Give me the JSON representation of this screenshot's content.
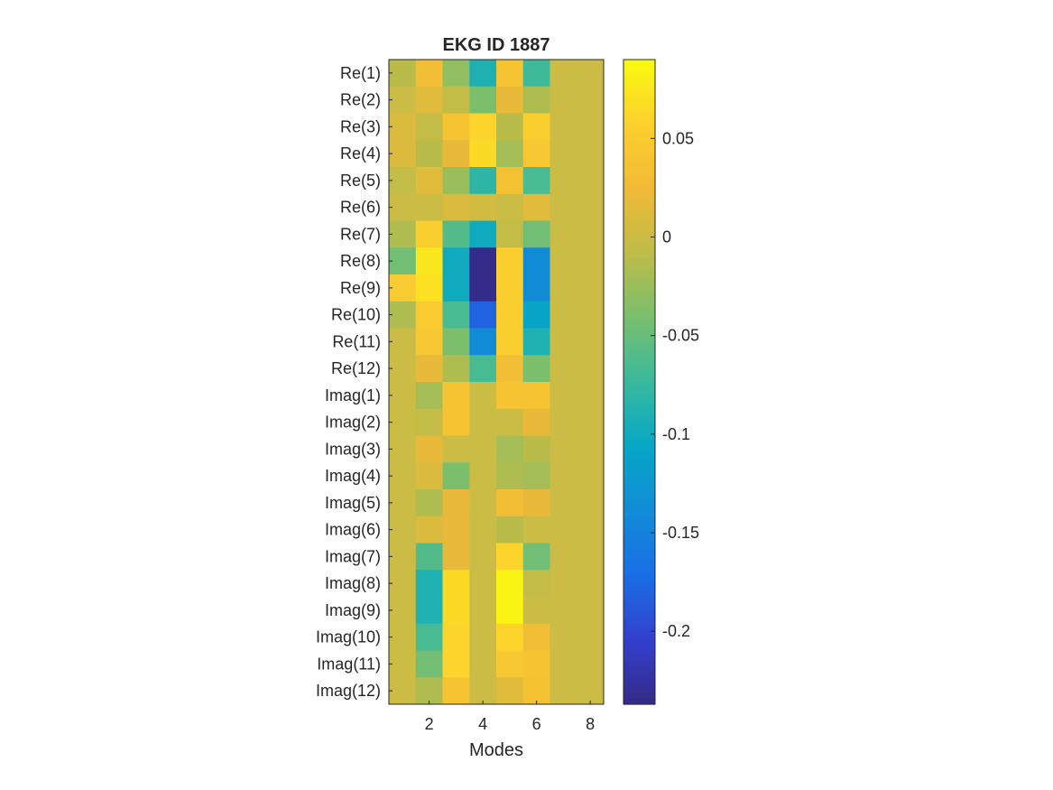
{
  "chart_data": {
    "type": "heatmap",
    "title": "EKG ID 1887",
    "xlabel": "Modes",
    "ylabel": "",
    "x_categories": [
      1,
      2,
      3,
      4,
      5,
      6,
      7,
      8
    ],
    "x_ticks": [
      2,
      4,
      6,
      8
    ],
    "y_categories": [
      "Re(1)",
      "Re(2)",
      "Re(3)",
      "Re(4)",
      "Re(5)",
      "Re(6)",
      "Re(7)",
      "Re(8)",
      "Re(9)",
      "Re(10)",
      "Re(11)",
      "Re(12)",
      "Imag(1)",
      "Imag(2)",
      "Imag(3)",
      "Imag(4)",
      "Imag(5)",
      "Imag(6)",
      "Imag(7)",
      "Imag(8)",
      "Imag(9)",
      "Imag(10)",
      "Imag(11)",
      "Imag(12)"
    ],
    "values": [
      [
        -0.01,
        0.03,
        -0.03,
        -0.09,
        0.04,
        -0.07,
        0,
        0
      ],
      [
        0,
        0.015,
        -0.005,
        -0.04,
        0.02,
        -0.015,
        0,
        0
      ],
      [
        0.01,
        -0.005,
        0.04,
        0.06,
        -0.01,
        0.055,
        0,
        0
      ],
      [
        0.01,
        -0.01,
        0.02,
        0.065,
        -0.02,
        0.045,
        0,
        0
      ],
      [
        -0.005,
        0.015,
        -0.025,
        -0.08,
        0.035,
        -0.065,
        0,
        0
      ],
      [
        0,
        0,
        0.01,
        0.005,
        0,
        0.015,
        0,
        0
      ],
      [
        -0.015,
        0.055,
        -0.06,
        -0.1,
        -0.005,
        -0.045,
        0,
        0
      ],
      [
        -0.045,
        0.075,
        -0.1,
        -0.235,
        0.055,
        -0.14,
        0,
        0
      ],
      [
        0.05,
        0.07,
        -0.1,
        -0.235,
        0.055,
        -0.14,
        0,
        0
      ],
      [
        -0.015,
        0.05,
        -0.065,
        -0.18,
        0.055,
        -0.11,
        0,
        0
      ],
      [
        0,
        0.045,
        -0.04,
        -0.14,
        0.055,
        -0.09,
        0,
        0
      ],
      [
        0,
        0.02,
        -0.015,
        -0.065,
        0.03,
        -0.04,
        0,
        0
      ],
      [
        0,
        -0.02,
        0.04,
        0,
        0.04,
        0.04,
        0,
        0
      ],
      [
        0,
        -0.005,
        0.04,
        0,
        0,
        0.02,
        0,
        0
      ],
      [
        0,
        0.02,
        0,
        0,
        -0.02,
        -0.01,
        0,
        0
      ],
      [
        0,
        0.01,
        -0.04,
        0,
        -0.015,
        -0.02,
        0,
        0
      ],
      [
        0,
        -0.015,
        0.02,
        0,
        0.03,
        0.02,
        0,
        0
      ],
      [
        0,
        0.01,
        0.02,
        0,
        -0.01,
        0,
        0,
        0
      ],
      [
        0,
        -0.06,
        0.02,
        0,
        0.06,
        -0.045,
        0,
        0
      ],
      [
        0,
        -0.09,
        0.065,
        0,
        0.085,
        -0.005,
        0,
        0
      ],
      [
        0,
        -0.09,
        0.065,
        0,
        0.085,
        0,
        0,
        0
      ],
      [
        0,
        -0.065,
        0.06,
        0,
        0.06,
        0.03,
        0,
        0
      ],
      [
        0,
        -0.045,
        0.06,
        0,
        0.045,
        0.04,
        0,
        0
      ],
      [
        0,
        -0.015,
        0.04,
        0,
        0.015,
        0.035,
        0,
        0
      ]
    ],
    "colorbar": {
      "colormap": "parula",
      "range": [
        -0.237,
        0.09
      ],
      "ticks": [
        0.05,
        0,
        -0.05,
        -0.1,
        -0.15,
        -0.2
      ]
    },
    "grid": false,
    "legend": "none"
  }
}
